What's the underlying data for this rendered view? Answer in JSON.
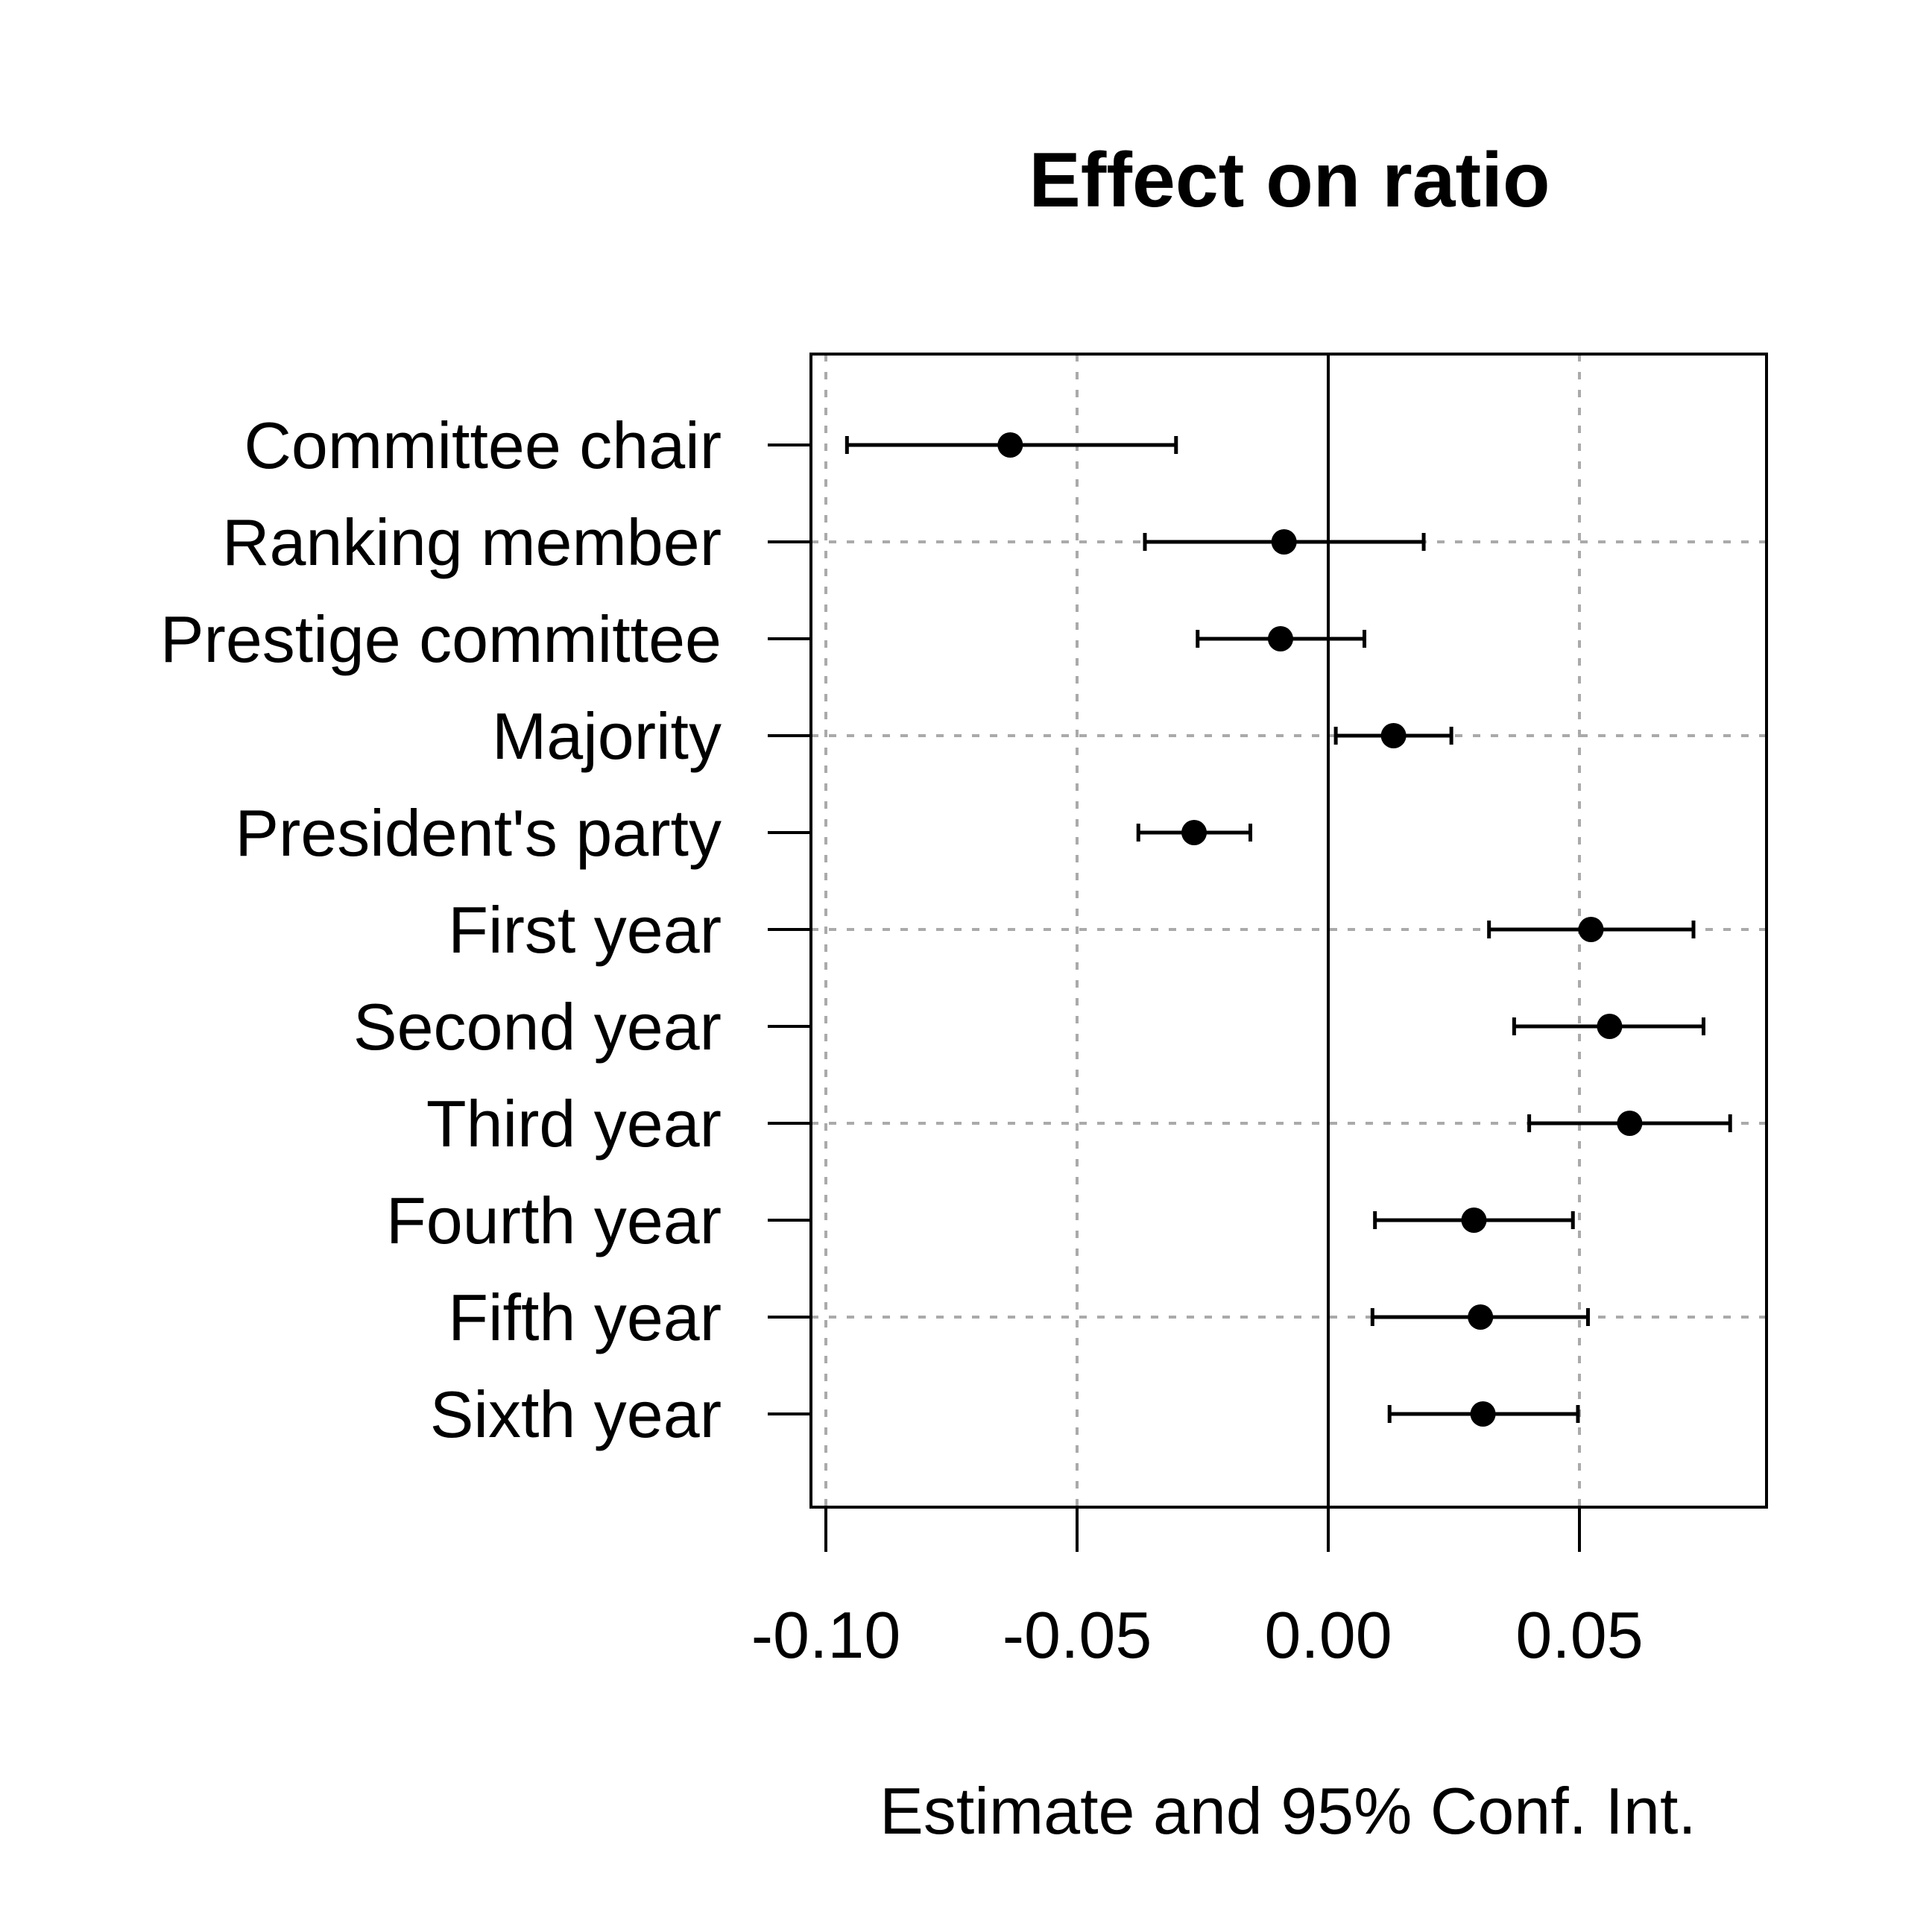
{
  "chart_data": {
    "type": "scatter",
    "subtype": "coefficient-plot-with-95ci",
    "title": "Effect on ratio",
    "xlabel": "Estimate and 95% Conf. Int.",
    "ylabel": "",
    "xlim": [
      -0.103,
      0.087
    ],
    "xticks": [
      -0.1,
      -0.05,
      0.0,
      0.05
    ],
    "xtick_labels": [
      "-0.10",
      "-0.05",
      "0.00",
      "0.05"
    ],
    "reference_line_x": 0.0,
    "grid": "dotted gray vertical at ticks, horizontal at alternate rows",
    "categories": [
      "Committee chair",
      "Ranking member",
      "Prestige committee",
      "Majority",
      "President's party",
      "First year",
      "Second year",
      "Third year",
      "Fourth year",
      "Fifth year",
      "Sixth year"
    ],
    "estimates": [
      -0.0633,
      -0.0088,
      -0.0095,
      0.013,
      -0.0267,
      0.0523,
      0.056,
      0.06,
      0.029,
      0.0303,
      0.0308
    ],
    "ci_lower": [
      -0.0958,
      -0.0365,
      -0.026,
      0.0015,
      -0.0378,
      0.032,
      0.037,
      0.04,
      0.0093,
      0.0088,
      0.0122
    ],
    "ci_upper": [
      -0.0303,
      0.019,
      0.0072,
      0.0245,
      -0.0155,
      0.0727,
      0.0747,
      0.08,
      0.0487,
      0.0517,
      0.0497
    ]
  },
  "colors": {
    "marks": "#000000",
    "grid": "#aaaaaa",
    "background": "#ffffff"
  }
}
